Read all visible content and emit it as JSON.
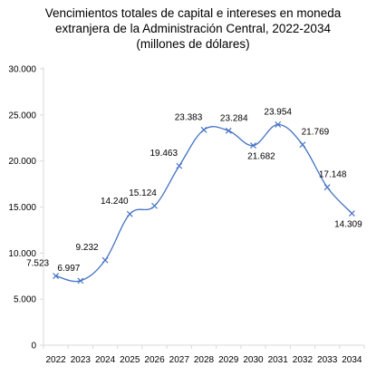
{
  "chart_data": {
    "type": "line",
    "title_lines": [
      "Vencimientos totales de capital e intereses en moneda",
      "extranjera de la Administración Central, 2022-2034",
      "(millones de dólares)"
    ],
    "xlabel": "",
    "ylabel": "",
    "categories": [
      "2022",
      "2023",
      "2024",
      "2025",
      "2026",
      "2027",
      "2028",
      "2029",
      "2030",
      "2031",
      "2032",
      "2033",
      "2034"
    ],
    "values": [
      7523,
      6997,
      9232,
      14240,
      15124,
      19463,
      23383,
      23284,
      21682,
      23954,
      21769,
      17148,
      14309
    ],
    "data_labels": [
      "7.523",
      "6.997",
      "9.232",
      "14.240",
      "15.124",
      "19.463",
      "23.383",
      "23.284",
      "21.682",
      "23.954",
      "21.769",
      "17.148",
      "14.309"
    ],
    "y_ticks": [
      0,
      5000,
      10000,
      15000,
      20000,
      25000,
      30000
    ],
    "y_tick_labels": [
      "0",
      "5.000",
      "10.000",
      "15.000",
      "20.000",
      "25.000",
      "30.000"
    ],
    "ylim": [
      0,
      30000
    ],
    "grid": false,
    "line_color": "#4472c4",
    "marker": "x"
  }
}
